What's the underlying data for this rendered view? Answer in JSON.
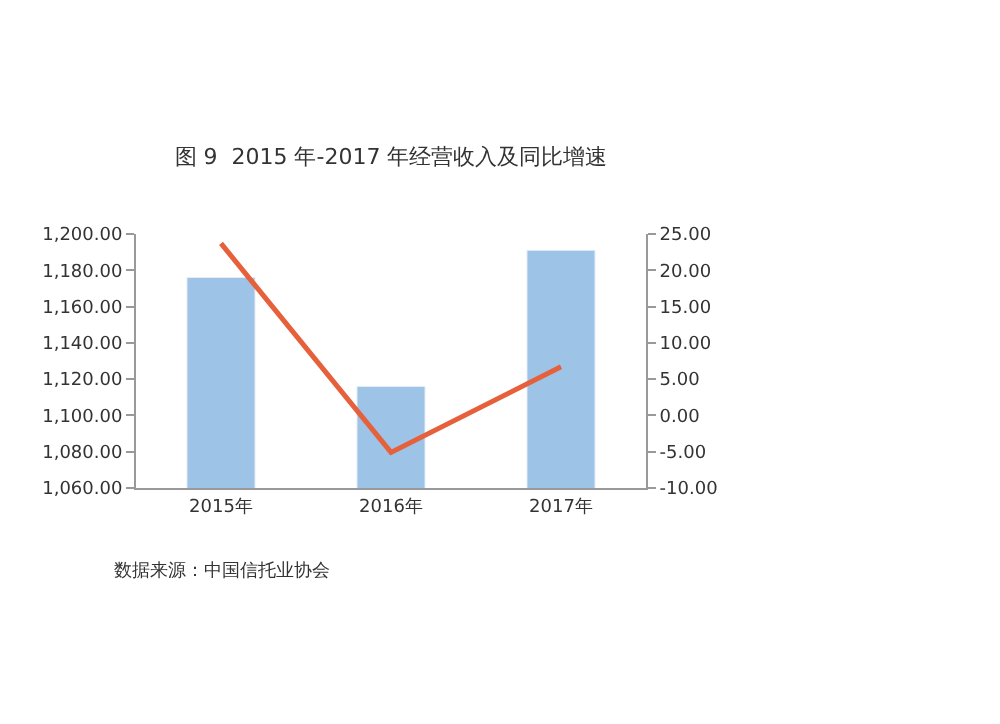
{
  "chart_data": {
    "type": "bar",
    "title": "图 9  2015 年-2017 年经营收入及同比增速",
    "categories": [
      "2015年",
      "2016年",
      "2017年"
    ],
    "series": [
      {
        "color": "#9dc3e6",
        "values": [
          1176,
          1116,
          1191
        ]
      },
      {
        "type": "line",
        "axis": "y2",
        "color": "#e5603b",
        "values": [
          23.7,
          -5.1,
          6.7
        ]
      }
    ],
    "ylim": [
      1060,
      1200
    ],
    "yticks": [
      {
        "value": 1060,
        "label": "1,060.00"
      },
      {
        "value": 1080,
        "label": "1,080.00"
      },
      {
        "value": 1100,
        "label": "1,100.00"
      },
      {
        "value": 1120,
        "label": "1,120.00"
      },
      {
        "value": 1140,
        "label": "1,140.00"
      },
      {
        "value": 1160,
        "label": "1,160.00"
      },
      {
        "value": 1180,
        "label": "1,180.00"
      },
      {
        "value": 1200,
        "label": "1,200.00"
      }
    ],
    "y2lim": [
      -10,
      25
    ],
    "y2ticks": [
      {
        "value": -10,
        "label": "-10.00"
      },
      {
        "value": -5,
        "label": "-5.00"
      },
      {
        "value": 0,
        "label": "0.00"
      },
      {
        "value": 5,
        "label": "5.00"
      },
      {
        "value": 10,
        "label": "10.00"
      },
      {
        "value": 15,
        "label": "15.00"
      },
      {
        "value": 20,
        "label": "20.00"
      },
      {
        "value": 25,
        "label": "25.00"
      }
    ],
    "marker": "none",
    "line_style": "solid",
    "annotations": [
      "数据来源：中国信托业协会"
    ]
  }
}
